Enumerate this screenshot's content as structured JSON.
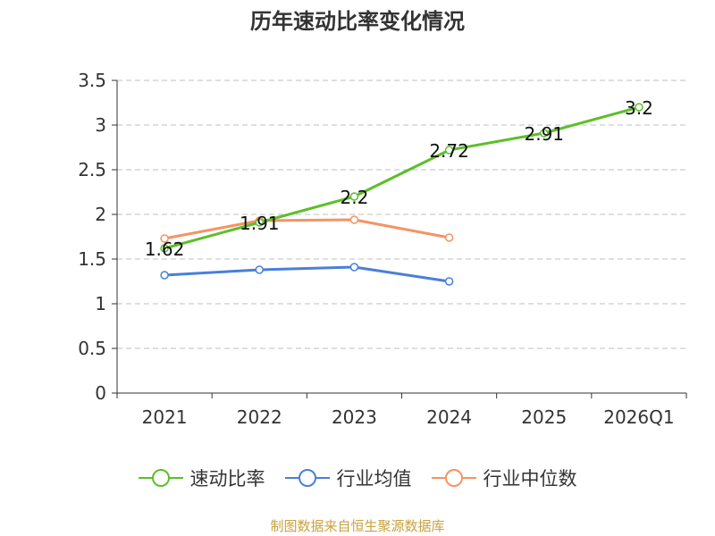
{
  "chart_data": {
    "type": "line",
    "title": "历年速动比率变化情况",
    "categories": [
      "2021",
      "2022",
      "2023",
      "2024",
      "2025",
      "2026Q1"
    ],
    "y_ticks": [
      "0",
      "0.5",
      "1",
      "1.5",
      "2",
      "2.5",
      "3",
      "3.5"
    ],
    "ylim": [
      0,
      3.5
    ],
    "grid": true,
    "legend_position": "bottom",
    "series": [
      {
        "name": "速动比率",
        "color": "#5cbf2a",
        "values": [
          1.62,
          1.91,
          2.2,
          2.72,
          2.91,
          3.2
        ],
        "labels": [
          "1.62",
          "1.91",
          "2.2",
          "2.72",
          "2.91",
          "3.2"
        ]
      },
      {
        "name": "行业均值",
        "color": "#4a7fd9",
        "values": [
          1.32,
          1.38,
          1.41,
          1.25,
          null,
          null
        ]
      },
      {
        "name": "行业中位数",
        "color": "#f59363",
        "values": [
          1.73,
          1.93,
          1.94,
          1.74,
          null,
          null
        ]
      }
    ]
  },
  "footer": {
    "source": "制图数据来自恒生聚源数据库"
  }
}
